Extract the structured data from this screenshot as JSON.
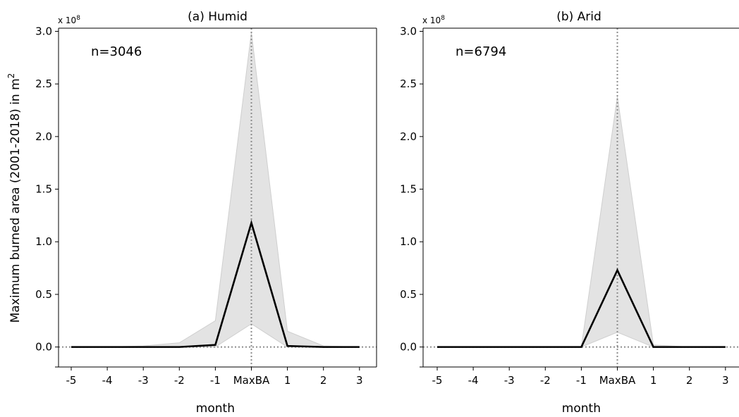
{
  "figure": {
    "ylabel": "Maximum burned area (2001-2018) in m",
    "ylabel_superscript": "2"
  },
  "chart_data": [
    {
      "type": "line",
      "title": "(a) Humid",
      "annotation": "n=3046",
      "scale_text": "x 10",
      "scale_exponent": "8",
      "xlabel": "month",
      "ylabel": "Maximum burned area (2001-2018) in m²",
      "categories": [
        "-5",
        "-4",
        "-3",
        "-2",
        "-1",
        "MaxBA",
        "1",
        "2",
        "3"
      ],
      "yticks": [
        "0.0",
        "0.5",
        "1.0",
        "1.5",
        "2.0",
        "2.5",
        "3.0"
      ],
      "ylim": [
        -0.19,
        3.03
      ],
      "series": [
        {
          "values": [
            0.0,
            0.0,
            0.0,
            0.0,
            0.02,
            1.18,
            0.01,
            0.0,
            0.0
          ],
          "color": "#000000"
        }
      ],
      "band": {
        "lower": [
          0.0,
          0.0,
          0.0,
          0.0,
          0.0,
          0.22,
          0.0,
          0.0,
          0.0
        ],
        "upper": [
          0.0,
          0.0,
          0.01,
          0.04,
          0.25,
          2.99,
          0.15,
          0.01,
          0.0
        ],
        "color": "#e3e3e3"
      },
      "reference_lines": {
        "vertical_at": "MaxBA",
        "horizontal_at": 0
      }
    },
    {
      "type": "line",
      "title": "(b) Arid",
      "annotation": "n=6794",
      "scale_text": "x 10",
      "scale_exponent": "8",
      "xlabel": "month",
      "categories": [
        "-5",
        "-4",
        "-3",
        "-2",
        "-1",
        "MaxBA",
        "1",
        "2",
        "3"
      ],
      "yticks": [
        "0.0",
        "0.5",
        "1.0",
        "1.5",
        "2.0",
        "2.5",
        "3.0"
      ],
      "ylim": [
        -0.19,
        3.03
      ],
      "series": [
        {
          "values": [
            0.0,
            0.0,
            0.0,
            0.0,
            0.0,
            0.73,
            0.0,
            0.0,
            0.0
          ],
          "color": "#000000"
        }
      ],
      "band": {
        "lower": [
          0.0,
          0.0,
          0.0,
          0.0,
          0.0,
          0.14,
          0.0,
          0.0,
          0.0
        ],
        "upper": [
          0.0,
          0.0,
          0.0,
          0.0,
          0.0,
          2.38,
          0.02,
          0.0,
          0.0
        ],
        "color": "#e3e3e3"
      },
      "reference_lines": {
        "vertical_at": "MaxBA",
        "horizontal_at": 0
      }
    }
  ]
}
